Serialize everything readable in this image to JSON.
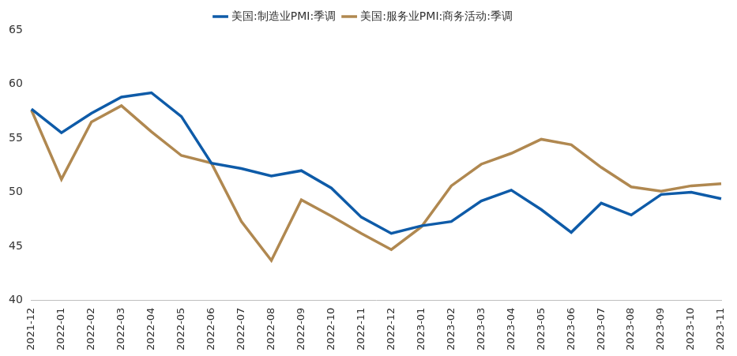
{
  "chart_data": {
    "type": "line",
    "categories": [
      "2021-12",
      "2022-01",
      "2022-02",
      "2022-03",
      "2022-04",
      "2022-05",
      "2022-06",
      "2022-07",
      "2022-08",
      "2022-09",
      "2022-10",
      "2022-11",
      "2022-12",
      "2023-01",
      "2023-02",
      "2023-03",
      "2023-04",
      "2023-05",
      "2023-06",
      "2023-07",
      "2023-08",
      "2023-09",
      "2023-10",
      "2023-11"
    ],
    "series": [
      {
        "name": "美国:制造业PMI:季调",
        "color": "#0e5ba8",
        "values": [
          57.7,
          55.5,
          57.3,
          58.8,
          59.2,
          57.0,
          52.7,
          52.2,
          51.5,
          52.0,
          50.4,
          47.7,
          46.2,
          46.9,
          47.3,
          49.2,
          50.2,
          48.4,
          46.3,
          49.0,
          47.9,
          49.8,
          50.0,
          49.4
        ]
      },
      {
        "name": "美国:服务业PMI:商务活动:季调",
        "color": "#b08850",
        "values": [
          57.6,
          51.2,
          56.5,
          58.0,
          55.6,
          53.4,
          52.7,
          47.3,
          43.7,
          49.3,
          47.8,
          46.2,
          44.7,
          46.8,
          50.6,
          52.6,
          53.6,
          54.9,
          54.4,
          52.3,
          50.5,
          50.1,
          50.6,
          50.8
        ]
      }
    ],
    "ylim": [
      40,
      65
    ],
    "yticks": [
      40,
      45,
      50,
      55,
      60,
      65
    ],
    "grid": false,
    "legend": "top"
  }
}
